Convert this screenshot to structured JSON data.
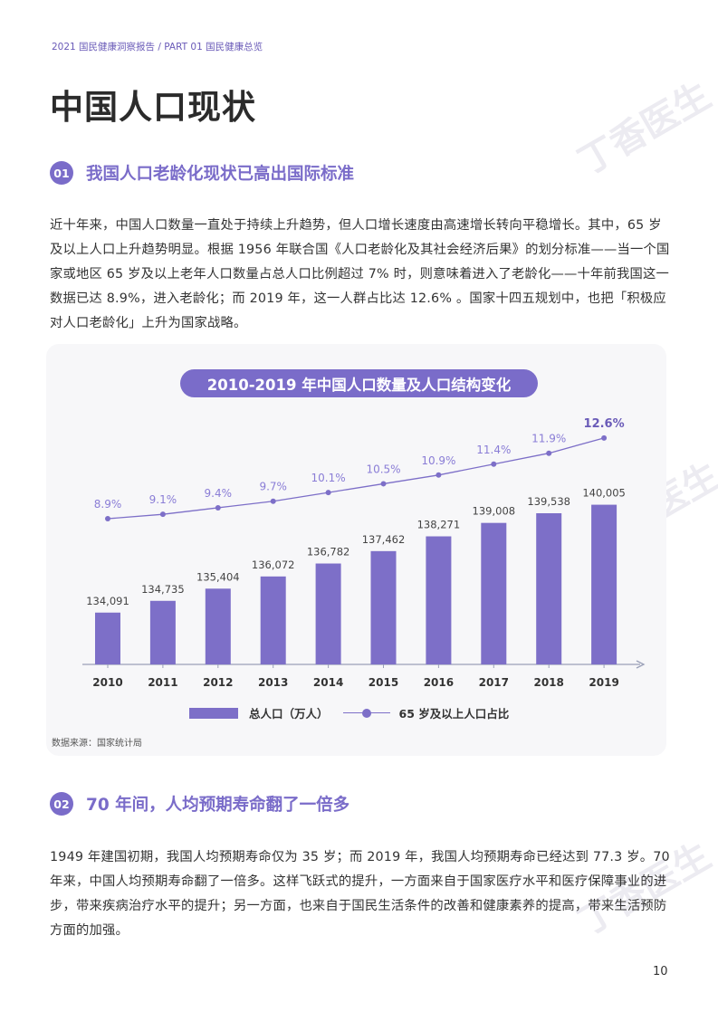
{
  "header": {
    "breadcrumb": "2021 国民健康洞察报告 / PART 01 国民健康总览",
    "page_title": "中国人口现状"
  },
  "watermark": "丁香医生",
  "section1": {
    "number": "01",
    "title": "我国人口老龄化现状已高出国际标准",
    "paragraph": "近十年来，中国人口数量一直处于持续上升趋势，但人口增长速度由高速增长转向平稳增长。其中，65 岁及以上人口上升趋势明显。根据 1956 年联合国《人口老龄化及其社会经济后果》的划分标准——当一个国家或地区 65 岁及以上老年人口数量占总人口比例超过 7% 时，则意味着进入了老龄化——十年前我国这一数据已达 8.9%，进入老龄化；而 2019 年，这一人群占比达 12.6% 。国家十四五规划中，也把「积极应对人口老龄化」上升为国家战略。"
  },
  "chart": {
    "source": "数据来源：国家统计局"
  },
  "chart_data": {
    "type": "bar",
    "title": "2010-2019 年中国人口数量及人口结构变化",
    "categories": [
      "2010",
      "2011",
      "2012",
      "2013",
      "2014",
      "2015",
      "2016",
      "2017",
      "2018",
      "2019"
    ],
    "series": [
      {
        "name": "总人口（万人）",
        "type": "bar",
        "values": [
          134091,
          134735,
          135404,
          136072,
          136782,
          137462,
          138271,
          139008,
          139538,
          140005
        ],
        "labels": [
          "134,091",
          "134,735",
          "135,404",
          "136,072",
          "136,782",
          "137,462",
          "138,271",
          "139,008",
          "139,538",
          "140,005"
        ]
      },
      {
        "name": "65 岁及以上人口占比",
        "type": "line",
        "values": [
          8.9,
          9.1,
          9.4,
          9.7,
          10.1,
          10.5,
          10.9,
          11.4,
          11.9,
          12.6
        ],
        "labels": [
          "8.9%",
          "9.1%",
          "9.4%",
          "9.7%",
          "10.1%",
          "10.5%",
          "10.9%",
          "11.4%",
          "11.9%",
          "12.6%"
        ]
      }
    ],
    "grid": false,
    "legend_position": "bottom",
    "highlight_last_line_label": true,
    "colors": {
      "bar": "#7d6fc8",
      "line": "#7d6fc8",
      "line_label": "#8a7dd6",
      "highlight_label": "#6a5bb8"
    }
  },
  "section2": {
    "number": "02",
    "title": "70 年间，人均预期寿命翻了一倍多",
    "paragraph": "1949 年建国初期，我国人均预期寿命仅为 35 岁；而 2019 年，我国人均预期寿命已经达到 77.3 岁。70 年来，中国人均预期寿命翻了一倍多。这样飞跃式的提升，一方面来自于国家医疗水平和医疗保障事业的进步，带来疾病治疗水平的提升；另一方面，也来自于国民生活条件的改善和健康素养的提高，带来生活预防方面的加强。"
  },
  "footer": {
    "page_number": "10"
  },
  "colors": {
    "accent": "#7a6cc9",
    "text": "#333333",
    "card_bg": "#f7f7f9"
  }
}
